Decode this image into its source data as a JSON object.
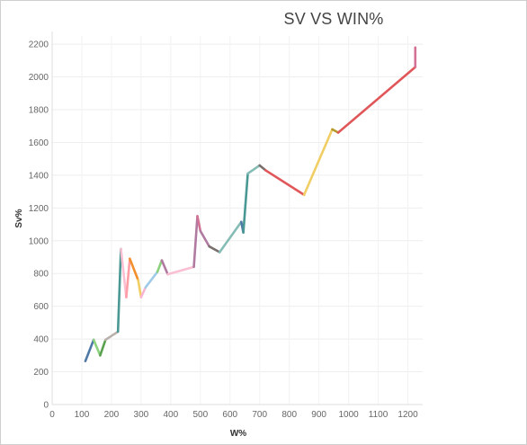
{
  "chart_data": {
    "type": "line",
    "title": "SV VS WIN%",
    "xlabel": "W%",
    "ylabel": "Sv%",
    "xlim": [
      0,
      1250
    ],
    "ylim": [
      0,
      2250
    ],
    "xticks": [
      0,
      100,
      200,
      300,
      400,
      500,
      600,
      700,
      800,
      900,
      1000,
      1100,
      1200
    ],
    "yticks": [
      0,
      200,
      400,
      600,
      800,
      1000,
      1200,
      1400,
      1600,
      1800,
      2000,
      2200
    ],
    "grid": true,
    "legend": "none",
    "series": [
      {
        "points": [
          [
            112,
            265
          ],
          [
            140,
            395
          ],
          [
            162,
            300
          ],
          [
            180,
            395
          ],
          [
            222,
            445
          ],
          [
            232,
            950
          ],
          [
            250,
            655
          ],
          [
            262,
            890
          ],
          [
            290,
            760
          ],
          [
            300,
            655
          ],
          [
            315,
            715
          ],
          [
            355,
            810
          ],
          [
            370,
            880
          ],
          [
            390,
            795
          ],
          [
            478,
            840
          ],
          [
            490,
            1150
          ],
          [
            500,
            1060
          ],
          [
            530,
            965
          ],
          [
            565,
            930
          ],
          [
            638,
            1115
          ],
          [
            645,
            1050
          ],
          [
            660,
            1410
          ],
          [
            700,
            1460
          ],
          [
            720,
            1430
          ],
          [
            850,
            1280
          ],
          [
            945,
            1680
          ],
          [
            965,
            1660
          ],
          [
            1225,
            2060
          ],
          [
            1225,
            2180
          ]
        ],
        "segment_colors": [
          "#4e79a7",
          "#8cd17d",
          "#59a14f",
          "#bab0ac",
          "#499894",
          "#fabfd2",
          "#ff9da7",
          "#f28e2b",
          "#f1ce63",
          "#f7b6d2",
          "#a0cbe8",
          "#8cd17d",
          "#b07aa1",
          "#fabfd2",
          "#b07aa1",
          "#d37295",
          "#b07aa1",
          "#79706e",
          "#86bcb6",
          "#4e79a7",
          "#499894",
          "#86bcb6",
          "#79706e",
          "#e15759",
          "#f1ce63",
          "#b6992d",
          "#e15759",
          "#d37295"
        ]
      }
    ]
  }
}
